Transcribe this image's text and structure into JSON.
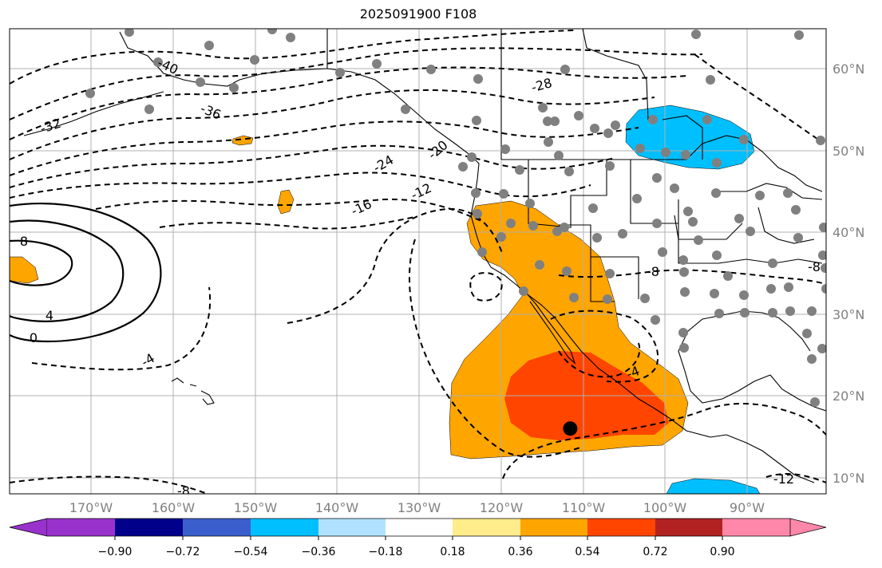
{
  "title": "2025091900 F108",
  "map": {
    "lat_labels": [
      "60°N",
      "50°N",
      "40°N",
      "30°N",
      "20°N",
      "10°N"
    ],
    "lon_labels": [
      "170°W",
      "160°W",
      "150°W",
      "140°W",
      "130°W",
      "120°W",
      "110°W",
      "100°W",
      "90°W"
    ],
    "contour_labels": [
      "-40",
      "-36",
      "-32",
      "-28",
      "-24",
      "-20",
      "-16",
      "-12",
      "-8",
      "-4",
      "0",
      "4",
      "8",
      "-8",
      "-12",
      "-4",
      "-8"
    ],
    "marker": {
      "lon": -113,
      "lat": 16,
      "color": "#000000"
    }
  },
  "colorbar": {
    "tick_labels": [
      "−0.90",
      "−0.72",
      "−0.54",
      "−0.36",
      "−0.18",
      "0.18",
      "0.36",
      "0.54",
      "0.72",
      "0.90"
    ],
    "colors": [
      "#9932cc",
      "#00008b",
      "#3a5fcd",
      "#00bfff",
      "#b0e2ff",
      "#ffffff",
      "#ffec8b",
      "#ffa500",
      "#ff4500",
      "#b22222",
      "#ff88aa",
      "#ff88aa"
    ]
  }
}
